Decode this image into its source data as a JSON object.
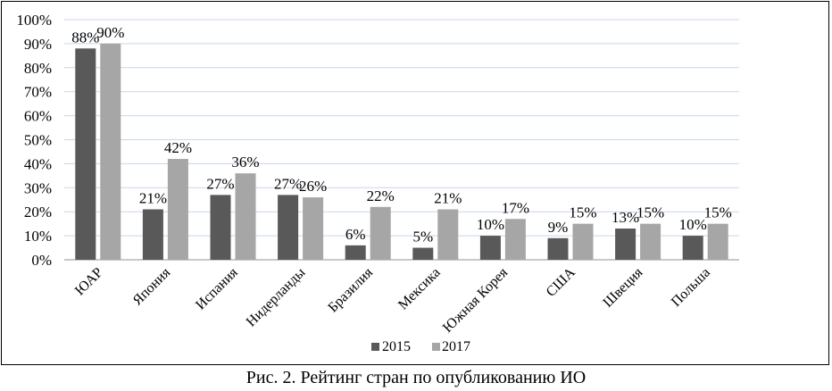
{
  "caption": "Рис. 2. Рейтинг стран по опубликованию ИО",
  "colors": {
    "s2015": "#595959",
    "s2017": "#a6a6a6",
    "grid": "#c8d7e8",
    "axis": "#b7b7b7"
  },
  "chart_data": {
    "type": "bar",
    "categories": [
      "ЮАР",
      "Япония",
      "Испания",
      "Нидерланды",
      "Бразилия",
      "Мексика",
      "Южная Корея",
      "США",
      "Швеция",
      "Польша"
    ],
    "series": [
      {
        "name": "2015",
        "values": [
          88,
          21,
          27,
          27,
          6,
          5,
          10,
          9,
          13,
          10
        ],
        "labels": [
          "88%",
          "21%",
          "27%",
          "27%",
          "6%",
          "5%",
          "10%",
          "9%",
          "13%",
          "10%"
        ]
      },
      {
        "name": "2017",
        "values": [
          90,
          42,
          36,
          26,
          22,
          21,
          17,
          15,
          15,
          15
        ],
        "labels": [
          "90%",
          "42%",
          "36%",
          "26%",
          "22%",
          "21%",
          "17%",
          "15%",
          "15%",
          "15%"
        ]
      }
    ],
    "ylim": [
      0,
      100
    ],
    "yticks": [
      "0%",
      "10%",
      "20%",
      "30%",
      "40%",
      "50%",
      "60%",
      "70%",
      "80%",
      "90%",
      "100%"
    ],
    "grid": true,
    "legend": "bottom"
  }
}
